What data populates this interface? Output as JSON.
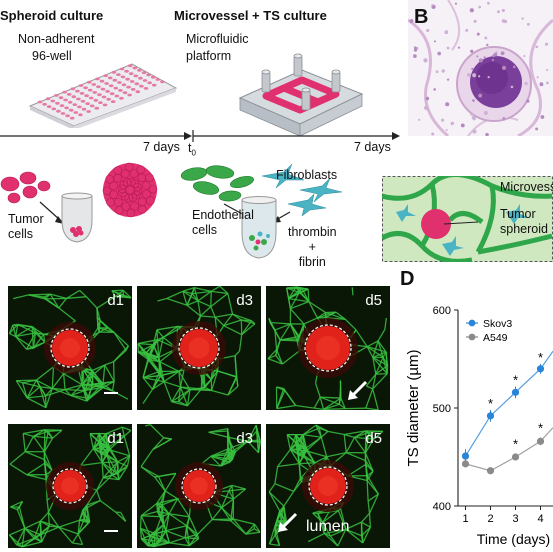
{
  "panel_a": {
    "spheroid_title": "Spheroid culture",
    "spheroid_sub1": "Non-adherent",
    "spheroid_sub2": "96-well",
    "microvessel_title": "Microvessel + TS culture",
    "microvessel_sub1": "Microfluidic",
    "microvessel_sub2": "platform",
    "timeline_left": "7 days",
    "timeline_t0": "t",
    "timeline_t0_sub": "0",
    "timeline_right": "7 days",
    "tumor_cells": "Tumor\ncells",
    "fibroblasts": "Fibroblasts",
    "endothelial": "Endothelial\ncells",
    "thrombin": "thrombin\n+\nfibrin",
    "microvessel_label": "Microvess",
    "tumor_spheroid": "Tumor\nspheroid"
  },
  "panel_b": {
    "letter": "B"
  },
  "panel_c": {
    "row1": [
      "d1",
      "d3",
      "d5"
    ],
    "row2": [
      "d1",
      "d3",
      "d5"
    ],
    "lumen_label": "lumen"
  },
  "panel_d": {
    "letter": "D"
  },
  "colors": {
    "pink": "#e0306e",
    "green": "#2fa64a",
    "cyan": "#4ab4c4",
    "skov3": "#2a84d8",
    "a549": "#8a8a8a"
  },
  "chart_data": {
    "type": "line",
    "title": "",
    "xlabel": "Time (days)",
    "ylabel": "TS diameter (µm)",
    "xlim": [
      0.7,
      4.5
    ],
    "ylim": [
      400,
      600
    ],
    "x": [
      1,
      2,
      3,
      4
    ],
    "xticks": [
      "1",
      "2",
      "3",
      "4"
    ],
    "yticks": [
      "400",
      "500",
      "600"
    ],
    "legend_position": "top-left",
    "series": [
      {
        "name": "Skov3",
        "color": "#2a84d8",
        "x": [
          1,
          2,
          3,
          4
        ],
        "values": [
          451,
          492,
          516,
          540
        ],
        "errors": [
          7,
          6,
          6,
          5
        ]
      },
      {
        "name": "A549",
        "color": "#8a8a8a",
        "x": [
          1,
          2,
          3,
          4
        ],
        "values": [
          443,
          436,
          450,
          466
        ],
        "errors": [
          3,
          3,
          3,
          4
        ]
      }
    ],
    "annotations": [
      {
        "label": "*",
        "x": 2,
        "y": 506
      },
      {
        "label": "*",
        "x": 3,
        "y": 530
      },
      {
        "label": "*",
        "x": 4,
        "y": 553
      },
      {
        "label": "*",
        "x": 3,
        "y": 465
      },
      {
        "label": "*",
        "x": 4,
        "y": 481
      }
    ]
  }
}
